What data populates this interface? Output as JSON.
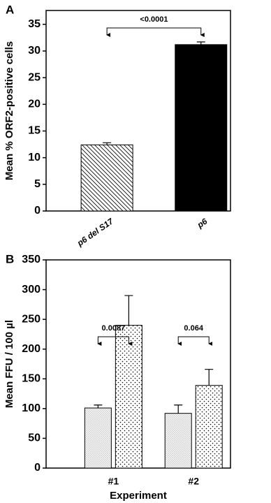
{
  "chart_data": [
    {
      "type": "bar",
      "panel_label": "A",
      "ylabel": "Mean % ORF2-positive cells",
      "categories": [
        "p6 del S17",
        "p6"
      ],
      "values": [
        12.4,
        31.2
      ],
      "errors": [
        0.4,
        0.5
      ],
      "patterns": [
        "hatch",
        "solid"
      ],
      "ylim": [
        0,
        37.6
      ],
      "yticks": [
        0,
        5,
        10,
        15,
        20,
        25,
        30,
        35
      ],
      "annotations": [
        "<0.0001"
      ]
    },
    {
      "type": "grouped_bar",
      "panel_label": "B",
      "xlabel": "Experiment",
      "ylabel": "Mean FFU / 100 µl",
      "categories": [
        "#1",
        "#2"
      ],
      "series": [
        {
          "values": [
            101,
            92
          ],
          "errors": [
            5,
            14
          ],
          "pattern": "stipple"
        },
        {
          "values": [
            240,
            139
          ],
          "errors": [
            50,
            27
          ],
          "pattern": "dots"
        }
      ],
      "ylim": [
        0,
        350
      ],
      "yticks": [
        0,
        50,
        100,
        150,
        200,
        250,
        300,
        350
      ],
      "annotations": [
        "0.0087",
        "0.064"
      ]
    }
  ]
}
